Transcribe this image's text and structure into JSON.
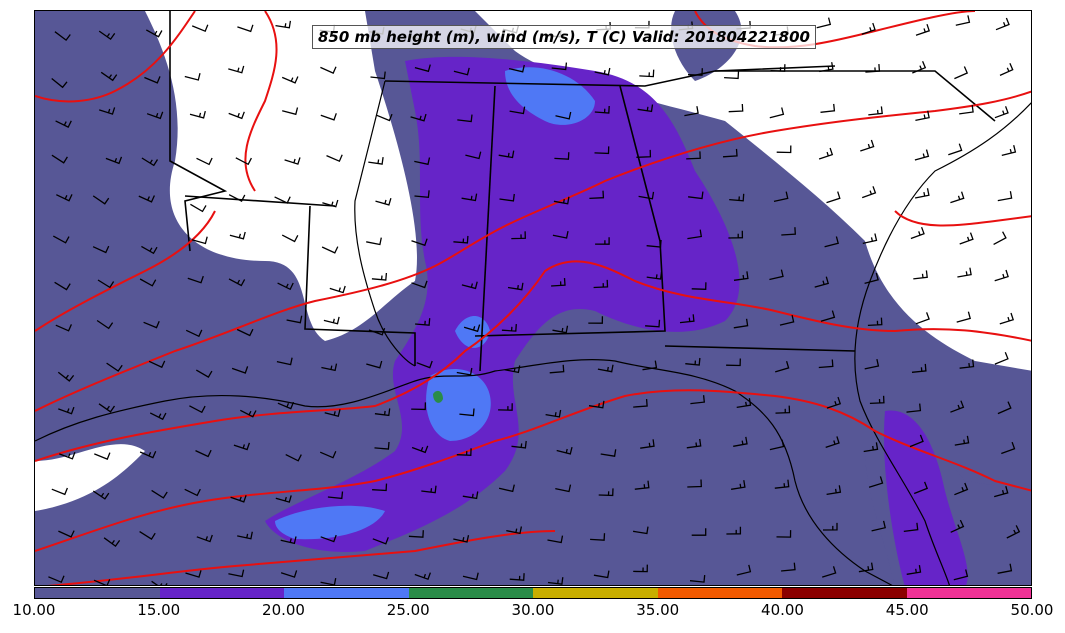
{
  "title": "850 mb height (m), wind (m/s), T (C) Valid: 201804221800",
  "colorbar": {
    "labels": [
      "10.00",
      "15.00",
      "20.00",
      "25.00",
      "30.00",
      "35.00",
      "40.00",
      "45.00",
      "50.00"
    ],
    "colors": [
      "#575796",
      "#6624c8",
      "#4f78f5",
      "#2a8c48",
      "#c8ae00",
      "#f25a00",
      "#8b0000",
      "#f03296"
    ]
  },
  "colors": {
    "fill_light": "#575796",
    "fill_mid": "#6624c8",
    "fill_high": "#4f78f5",
    "fill_peak": "#2a8c48",
    "contour": "#e81010",
    "borders": "#000000"
  }
}
